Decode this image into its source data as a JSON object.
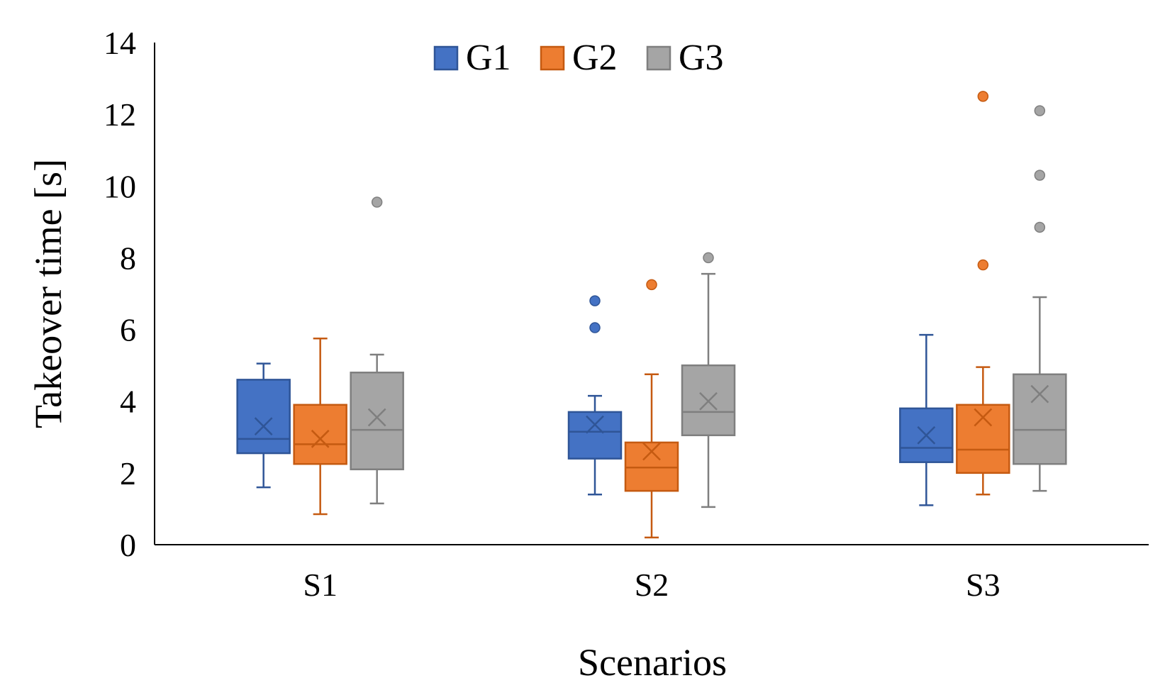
{
  "chart_data": {
    "type": "boxplot",
    "xlabel": "Scenarios",
    "ylabel": "Takeover time [s]",
    "ylim": [
      0,
      14
    ],
    "yticks": [
      0,
      2,
      4,
      6,
      8,
      10,
      12,
      14
    ],
    "categories": [
      "S1",
      "S2",
      "S3"
    ],
    "legend_position": "top-center",
    "series": [
      {
        "name": "G1",
        "color": "#4472C4",
        "stroke": "#2F5597",
        "boxes": [
          {
            "min": 1.6,
            "q1": 2.55,
            "median": 2.95,
            "q3": 4.6,
            "max": 5.05,
            "mean": 3.3,
            "outliers": []
          },
          {
            "min": 1.4,
            "q1": 2.4,
            "median": 3.15,
            "q3": 3.7,
            "max": 4.15,
            "mean": 3.35,
            "outliers": [
              6.05,
              6.8
            ]
          },
          {
            "min": 1.1,
            "q1": 2.3,
            "median": 2.7,
            "q3": 3.8,
            "max": 5.85,
            "mean": 3.05,
            "outliers": []
          }
        ]
      },
      {
        "name": "G2",
        "color": "#ED7D31",
        "stroke": "#C55A11",
        "boxes": [
          {
            "min": 0.85,
            "q1": 2.25,
            "median": 2.8,
            "q3": 3.9,
            "max": 5.75,
            "mean": 2.95,
            "outliers": []
          },
          {
            "min": 0.2,
            "q1": 1.5,
            "median": 2.15,
            "q3": 2.85,
            "max": 4.75,
            "mean": 2.6,
            "outliers": [
              7.25
            ]
          },
          {
            "min": 1.4,
            "q1": 2.0,
            "median": 2.65,
            "q3": 3.9,
            "max": 4.95,
            "mean": 3.55,
            "outliers": [
              7.8,
              12.5
            ]
          }
        ]
      },
      {
        "name": "G3",
        "color": "#A5A5A5",
        "stroke": "#7F7F7F",
        "boxes": [
          {
            "min": 1.15,
            "q1": 2.1,
            "median": 3.2,
            "q3": 4.8,
            "max": 5.3,
            "mean": 3.55,
            "outliers": [
              9.55
            ]
          },
          {
            "min": 1.05,
            "q1": 3.05,
            "median": 3.7,
            "q3": 5.0,
            "max": 7.55,
            "mean": 4.0,
            "outliers": [
              8.0
            ]
          },
          {
            "min": 1.5,
            "q1": 2.25,
            "median": 3.2,
            "q3": 4.75,
            "max": 6.9,
            "mean": 4.2,
            "outliers": [
              8.85,
              10.3,
              12.1
            ]
          }
        ]
      }
    ]
  }
}
